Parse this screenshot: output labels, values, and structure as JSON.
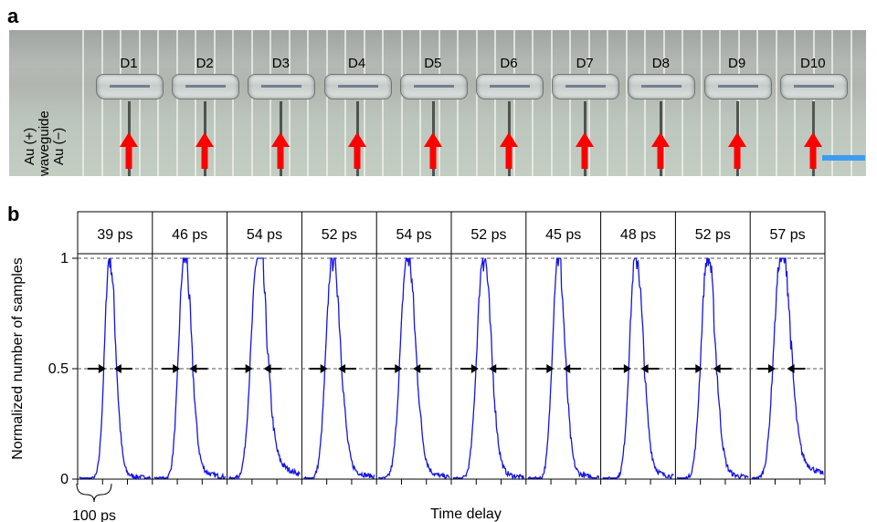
{
  "figure": {
    "panel_a_letter": "a",
    "panel_b_letter": "b",
    "micrograph": {
      "device_labels": [
        "D1",
        "D2",
        "D3",
        "D4",
        "D5",
        "D6",
        "D7",
        "D8",
        "D9",
        "D10"
      ],
      "side_labels": [
        "Au (+)",
        "waveguide",
        "Au (−)"
      ],
      "arrow_color": "#ff0000",
      "scale_bar_color": "#3e9cf0"
    }
  },
  "chart_data": {
    "type": "line",
    "title": "",
    "xlabel": "Time delay",
    "ylabel": "Normalized number of samples",
    "ylim": [
      0,
      1.1
    ],
    "yticks": [
      0,
      0.5,
      1
    ],
    "ytick_labels": [
      "0",
      "0.5",
      "1"
    ],
    "half_max_level": 0.5,
    "x_scale_annotation": "100 ps",
    "line_color": "#1414e6",
    "grid": false,
    "series": [
      {
        "label": "39 ps",
        "fwhm_ps": 39,
        "peak_pos": 0.42,
        "sigma": 0.075,
        "tail": 0.05
      },
      {
        "label": "46 ps",
        "fwhm_ps": 46,
        "peak_pos": 0.42,
        "sigma": 0.085,
        "tail": 0.1
      },
      {
        "label": "54 ps",
        "fwhm_ps": 54,
        "peak_pos": 0.4,
        "sigma": 0.1,
        "tail": 0.25
      },
      {
        "label": "52 ps",
        "fwhm_ps": 52,
        "peak_pos": 0.4,
        "sigma": 0.095,
        "tail": 0.12
      },
      {
        "label": "54 ps",
        "fwhm_ps": 54,
        "peak_pos": 0.4,
        "sigma": 0.1,
        "tail": 0.1
      },
      {
        "label": "52 ps",
        "fwhm_ps": 52,
        "peak_pos": 0.42,
        "sigma": 0.095,
        "tail": 0.08
      },
      {
        "label": "45 ps",
        "fwhm_ps": 45,
        "peak_pos": 0.42,
        "sigma": 0.083,
        "tail": 0.07
      },
      {
        "label": "48 ps",
        "fwhm_ps": 48,
        "peak_pos": 0.46,
        "sigma": 0.09,
        "tail": 0.1
      },
      {
        "label": "52 ps",
        "fwhm_ps": 52,
        "peak_pos": 0.42,
        "sigma": 0.095,
        "tail": 0.08
      },
      {
        "label": "57 ps",
        "fwhm_ps": 57,
        "peak_pos": 0.4,
        "sigma": 0.105,
        "tail": 0.28
      }
    ]
  }
}
